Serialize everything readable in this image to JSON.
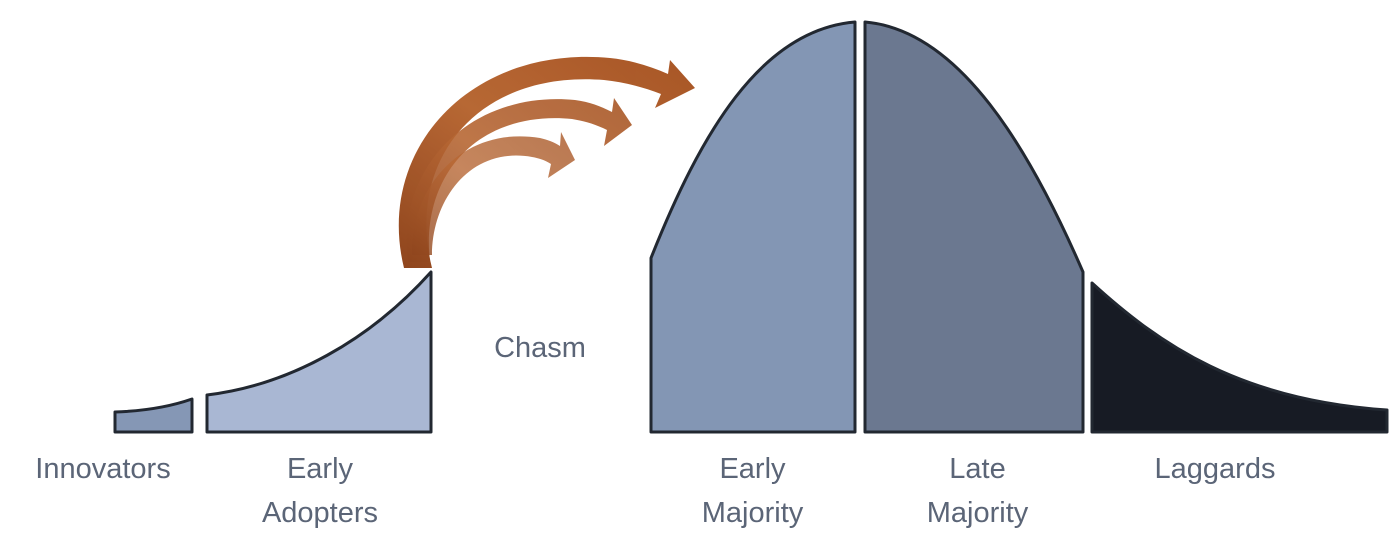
{
  "labels": {
    "innovators": "Innovators",
    "early_adopters_line1": "Early",
    "early_adopters_line2": "Adopters",
    "chasm": "Chasm",
    "early_majority_line1": "Early",
    "early_majority_line2": "Majority",
    "late_majority_line1": "Late",
    "late_majority_line2": "Majority",
    "laggards": "Laggards"
  },
  "colors": {
    "innovators": "#8597b5",
    "early_adopters": "#a9b7d3",
    "early_majority": "#8396b4",
    "late_majority": "#6b7890",
    "laggards": "#171b24",
    "arrows": "#a64f1c",
    "label_text": "#5b6577"
  },
  "icons": {
    "arrows": "curved-arrow-icon"
  }
}
